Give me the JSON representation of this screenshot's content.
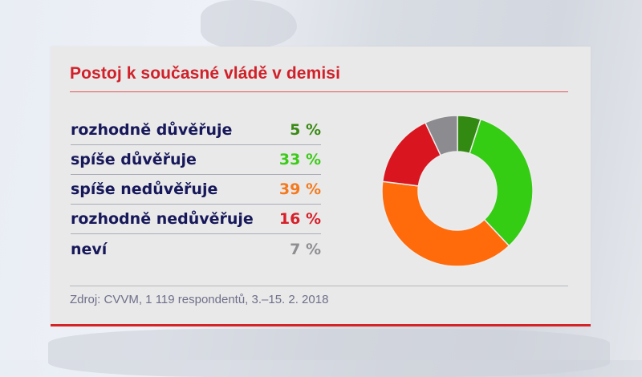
{
  "panel": {
    "title": "Postoj k současné vládě v demisi",
    "source": "Zdroj: CVVM, 1 119 respondentů, 3.–15. 2. 2018"
  },
  "rows": [
    {
      "label": "rozhodně důvěřuje",
      "value": "5 %",
      "color": "#3a8a16"
    },
    {
      "label": "spíše důvěřuje",
      "value": "33 %",
      "color": "#3dcb1a"
    },
    {
      "label": "spíše nedůvěřuje",
      "value": "39 %",
      "color": "#f47a1e"
    },
    {
      "label": "rozhodně nedůvěřuje",
      "value": "16 %",
      "color": "#d7202a"
    },
    {
      "label": "neví",
      "value": "7 %",
      "color": "#8e8e93"
    }
  ],
  "chart_data": {
    "type": "pie",
    "title": "Postoj k současné vládě v demisi",
    "donut": true,
    "categories": [
      "rozhodně důvěřuje",
      "spíše důvěřuje",
      "spíše nedůvěřuje",
      "rozhodně nedůvěřuje",
      "neví"
    ],
    "values": [
      5,
      33,
      39,
      16,
      7
    ],
    "unit": "%",
    "colors": [
      "#338a12",
      "#35cc14",
      "#ff6b0a",
      "#d9161f",
      "#8b8b90"
    ],
    "start_angle": "12 o'clock, clockwise",
    "legend": "table on left",
    "source": "Zdroj: CVVM, 1 119 respondentů, 3.–15. 2. 2018"
  }
}
